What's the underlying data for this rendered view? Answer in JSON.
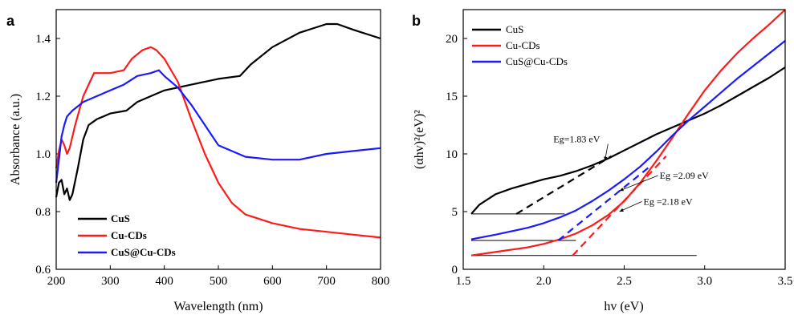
{
  "chart_data": [
    {
      "type": "line",
      "panel_label": "a",
      "xlabel": "Wavelength (nm)",
      "ylabel": "Absorbance (a.u.)",
      "xlim": [
        200,
        800
      ],
      "ylim": [
        0.6,
        1.5
      ],
      "xticks": [
        200,
        300,
        400,
        500,
        600,
        700,
        800
      ],
      "yticks": [
        0.6,
        0.8,
        1.0,
        1.2,
        1.4
      ],
      "ytick_labels": [
        "0.6",
        "0.8",
        "1.0",
        "1.2",
        "1.4"
      ],
      "legend_position": "bottom-left",
      "series": [
        {
          "name": "CuS",
          "color": "#000000",
          "x": [
            200,
            205,
            210,
            215,
            220,
            225,
            230,
            240,
            250,
            260,
            275,
            300,
            330,
            350,
            375,
            400,
            450,
            500,
            540,
            560,
            600,
            650,
            700,
            720,
            750,
            800
          ],
          "y": [
            0.85,
            0.9,
            0.91,
            0.86,
            0.88,
            0.84,
            0.86,
            0.95,
            1.05,
            1.1,
            1.12,
            1.14,
            1.15,
            1.18,
            1.2,
            1.22,
            1.24,
            1.26,
            1.27,
            1.31,
            1.37,
            1.42,
            1.45,
            1.45,
            1.43,
            1.4
          ]
        },
        {
          "name": "Cu-CDs",
          "color": "#ff1a1a",
          "x": [
            200,
            205,
            210,
            215,
            220,
            225,
            235,
            250,
            270,
            300,
            325,
            340,
            360,
            375,
            385,
            400,
            425,
            450,
            475,
            500,
            525,
            550,
            600,
            650,
            700,
            750,
            800
          ],
          "y": [
            0.95,
            1.01,
            1.05,
            1.03,
            1.0,
            1.02,
            1.1,
            1.2,
            1.28,
            1.28,
            1.29,
            1.33,
            1.36,
            1.37,
            1.36,
            1.33,
            1.25,
            1.12,
            1.0,
            0.9,
            0.83,
            0.79,
            0.76,
            0.74,
            0.73,
            0.72,
            0.71
          ]
        },
        {
          "name": "CuS@Cu-CDs",
          "color": "#1a1aff",
          "x": [
            200,
            205,
            210,
            215,
            220,
            230,
            250,
            275,
            300,
            325,
            350,
            375,
            390,
            400,
            425,
            450,
            475,
            500,
            550,
            600,
            650,
            700,
            750,
            800
          ],
          "y": [
            0.9,
            0.98,
            1.06,
            1.1,
            1.13,
            1.15,
            1.18,
            1.2,
            1.22,
            1.24,
            1.27,
            1.28,
            1.29,
            1.27,
            1.23,
            1.17,
            1.1,
            1.03,
            0.99,
            0.98,
            0.98,
            1.0,
            1.01,
            1.02
          ]
        }
      ]
    },
    {
      "type": "line",
      "panel_label": "b",
      "xlabel": "hv (eV)",
      "ylabel": "(αhv)²(eV)²",
      "xlim": [
        1.5,
        3.5
      ],
      "ylim": [
        0,
        22.5
      ],
      "xticks": [
        1.5,
        2.0,
        2.5,
        3.0,
        3.5
      ],
      "xtick_labels": [
        "1.5",
        "2.0",
        "2.5",
        "3.0",
        "3.5"
      ],
      "yticks": [
        0,
        5,
        10,
        15,
        20
      ],
      "legend_position": "top-left",
      "series": [
        {
          "name": "CuS",
          "color": "#000000",
          "x": [
            1.55,
            1.6,
            1.7,
            1.8,
            1.9,
            2.0,
            2.1,
            2.2,
            2.3,
            2.4,
            2.5,
            2.6,
            2.7,
            2.8,
            2.9,
            3.0,
            3.1,
            3.2,
            3.3,
            3.4,
            3.5
          ],
          "y": [
            4.8,
            5.6,
            6.5,
            7.0,
            7.4,
            7.8,
            8.1,
            8.5,
            9.0,
            9.6,
            10.3,
            11.0,
            11.7,
            12.3,
            12.9,
            13.5,
            14.2,
            15.0,
            15.8,
            16.6,
            17.5
          ]
        },
        {
          "name": "Cu-CDs",
          "color": "#ff1a1a",
          "x": [
            1.55,
            1.7,
            1.9,
            2.0,
            2.1,
            2.2,
            2.3,
            2.4,
            2.5,
            2.6,
            2.7,
            2.8,
            2.9,
            3.0,
            3.1,
            3.2,
            3.3,
            3.4,
            3.5
          ],
          "y": [
            1.2,
            1.5,
            1.9,
            2.2,
            2.6,
            3.1,
            3.8,
            4.7,
            5.9,
            7.5,
            9.4,
            11.4,
            13.5,
            15.5,
            17.2,
            18.7,
            20.0,
            21.2,
            22.5
          ]
        },
        {
          "name": "CuS@Cu-CDs",
          "color": "#1a1aff",
          "x": [
            1.55,
            1.7,
            1.9,
            2.0,
            2.1,
            2.2,
            2.3,
            2.4,
            2.5,
            2.6,
            2.7,
            2.8,
            2.9,
            3.0,
            3.1,
            3.2,
            3.3,
            3.4,
            3.5
          ],
          "y": [
            2.6,
            3.0,
            3.6,
            4.0,
            4.5,
            5.1,
            5.9,
            6.8,
            7.8,
            8.9,
            10.2,
            11.6,
            12.9,
            14.1,
            15.3,
            16.5,
            17.6,
            18.7,
            19.8
          ]
        }
      ],
      "tangents": [
        {
          "color": "#000000",
          "x": [
            1.83,
            2.42
          ],
          "y": [
            4.8,
            9.8
          ]
        },
        {
          "color": "#1a1aff",
          "x": [
            2.09,
            2.65
          ],
          "y": [
            2.5,
            8.8
          ]
        },
        {
          "color": "#ff1a1a",
          "x": [
            2.18,
            2.76
          ],
          "y": [
            1.2,
            9.8
          ]
        }
      ],
      "baselines": [
        {
          "x": [
            1.55,
            2.13
          ],
          "y": [
            4.8,
            4.8
          ]
        },
        {
          "x": [
            1.55,
            2.2
          ],
          "y": [
            2.5,
            2.5
          ]
        },
        {
          "x": [
            1.55,
            2.95
          ],
          "y": [
            1.2,
            1.2
          ]
        }
      ],
      "annotations": [
        {
          "text": "Eg=1.83 eV",
          "tx": 2.06,
          "ty": 11.0,
          "ax": 2.38,
          "ay": 9.4
        },
        {
          "text": "Eg =2.09 eV",
          "tx": 2.72,
          "ty": 7.85,
          "ax": 2.47,
          "ay": 6.8
        },
        {
          "text": "Eg =2.18 eV",
          "tx": 2.62,
          "ty": 5.6,
          "ax": 2.47,
          "ay": 5.0
        }
      ]
    }
  ]
}
